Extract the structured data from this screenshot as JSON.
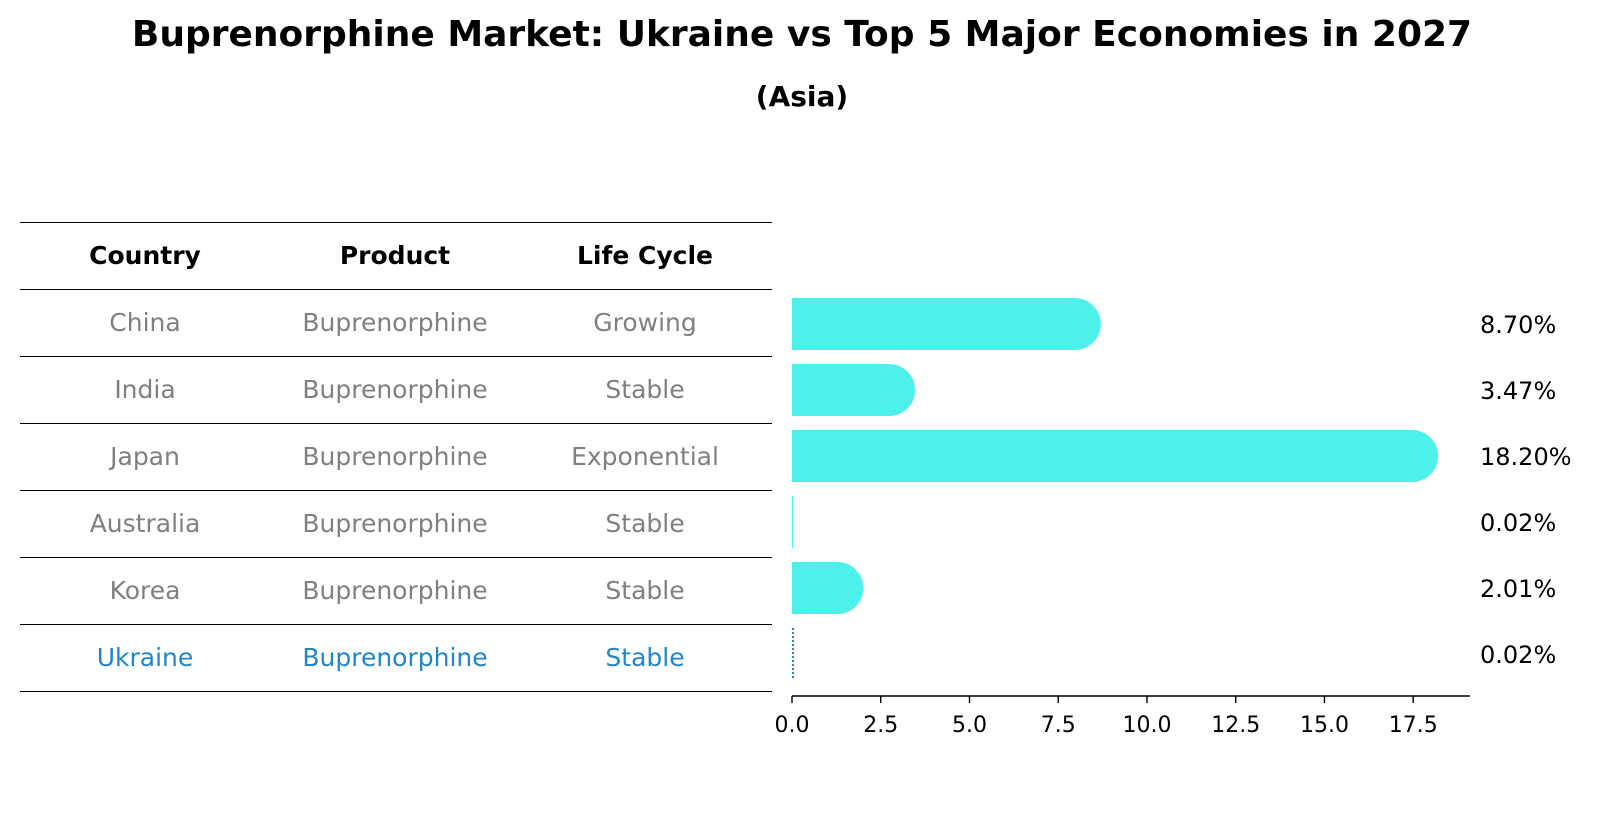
{
  "chart_data": {
    "type": "bar",
    "orientation": "horizontal",
    "title": "Buprenorphine Market: Ukraine vs Top 5 Major Economies in 2027",
    "subtitle": "(Asia)",
    "table": {
      "headers": [
        "Country",
        "Product",
        "Life Cycle"
      ],
      "rows": [
        {
          "country": "China",
          "product": "Buprenorphine",
          "life_cycle": "Growing"
        },
        {
          "country": "India",
          "product": "Buprenorphine",
          "life_cycle": "Stable"
        },
        {
          "country": "Japan",
          "product": "Buprenorphine",
          "life_cycle": "Exponential"
        },
        {
          "country": "Australia",
          "product": "Buprenorphine",
          "life_cycle": "Stable"
        },
        {
          "country": "Korea",
          "product": "Buprenorphine",
          "life_cycle": "Stable"
        },
        {
          "country": "Ukraine",
          "product": "Buprenorphine",
          "life_cycle": "Stable"
        }
      ]
    },
    "categories": [
      "China",
      "India",
      "Japan",
      "Australia",
      "Korea",
      "Ukraine"
    ],
    "values": [
      8.7,
      3.47,
      18.2,
      0.02,
      2.01,
      0.02
    ],
    "value_labels": [
      "8.70%",
      "3.47%",
      "18.20%",
      "0.02%",
      "2.01%",
      "0.02%"
    ],
    "xlim": [
      0,
      19.1
    ],
    "xticks": [
      0.0,
      2.5,
      5.0,
      7.5,
      10.0,
      12.5,
      15.0,
      17.5
    ],
    "xtick_labels": [
      "0.0",
      "2.5",
      "5.0",
      "7.5",
      "10.0",
      "12.5",
      "15.0",
      "17.5"
    ],
    "highlight_category": "Ukraine",
    "colors": {
      "bar": "#4ef0ea",
      "highlight": "#1f86c9",
      "table_text": "#808080"
    },
    "grid": false
  }
}
